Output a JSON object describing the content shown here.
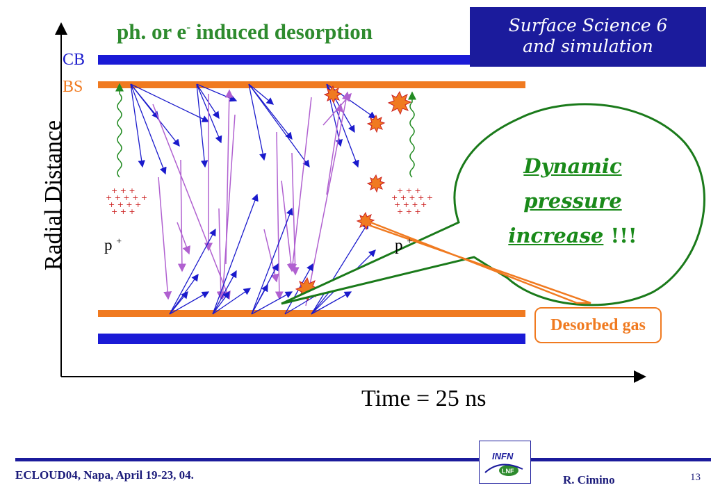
{
  "slide": {
    "title_main": "ph. or e",
    "title_sup": "-",
    "title_rest": " induced desorption",
    "corner_line1": "Surface Science 6",
    "corner_line2": "and simulation"
  },
  "diagram": {
    "label_cb": "CB",
    "label_bs": "BS",
    "y_axis_label": "Radial Distance",
    "x_axis_label": "Time = 25 ns",
    "proton_left": "p",
    "proton_right": "p",
    "proton_sup": "+",
    "callout": {
      "line1": "Dynamic",
      "line2": "pressure",
      "line3": "increase",
      "bang": " !!!"
    },
    "desorbed_label": "Desorbed gas",
    "colors": {
      "cb": "#1a1ad6",
      "bs": "#f07a20",
      "electron_primary": "#1a1acc",
      "electron_secondary": "#b060d0",
      "photon": "#228b22",
      "callout": "#1a8a1a",
      "desorbed": "#f07a20",
      "plus": "#cc2222"
    }
  },
  "footer": {
    "conference": "ECLOUD04, Napa, April 19-23, 04.",
    "author": "R. Cimino",
    "page": "13",
    "logo_top": "INFN",
    "logo_bottom": "LNF"
  }
}
